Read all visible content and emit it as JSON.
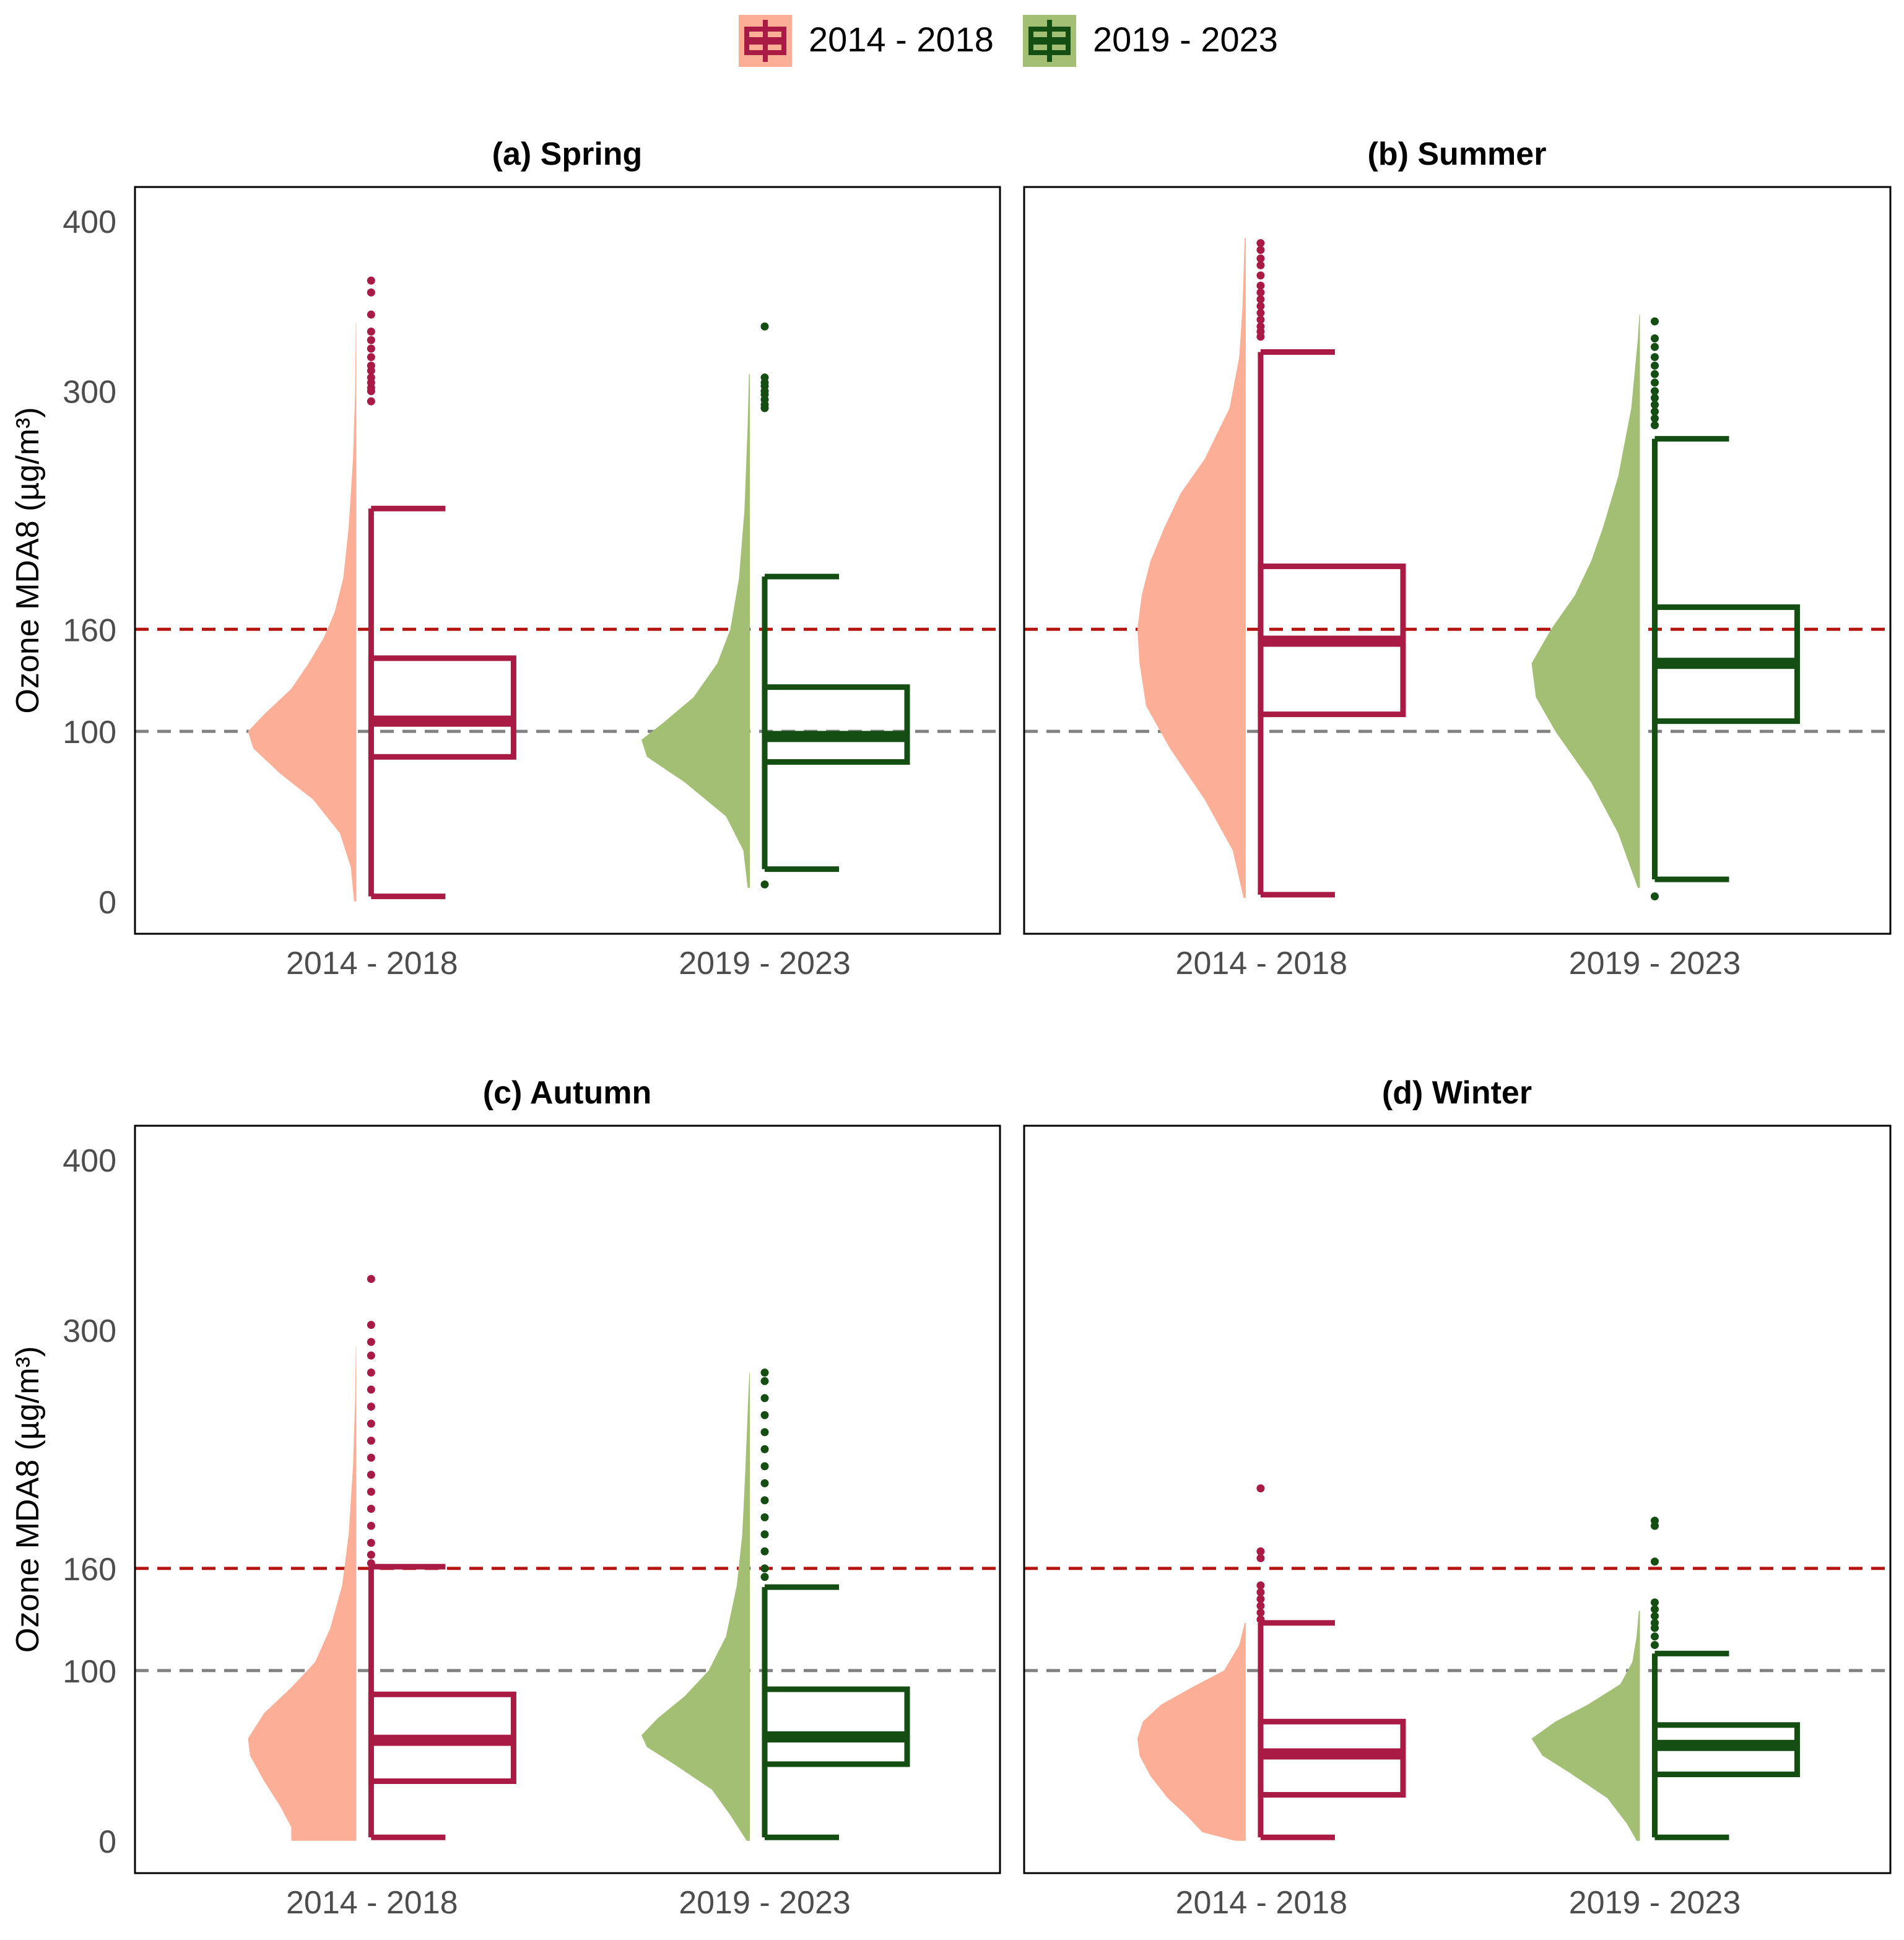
{
  "legend": {
    "items": [
      {
        "label": "2014 - 2018",
        "fill": "#fcae96",
        "stroke": "#a91a45"
      },
      {
        "label": "2019 - 2023",
        "fill": "#a3bf73",
        "stroke": "#154e13"
      }
    ]
  },
  "colors": {
    "period1_fill": "#fcae96",
    "period1_line": "#a91a45",
    "period2_fill": "#a3bf73",
    "period2_line": "#154e13",
    "limit_160": "#b5140f",
    "limit_100": "#808080"
  },
  "chart_data": [
    {
      "type": "raincloud",
      "title": "(a) Spring",
      "ylabel": "Ozone MDA8 (µg/m³)",
      "xlabel": "",
      "ylim": [
        -19,
        420
      ],
      "yticks": [
        0,
        100,
        160,
        300,
        400
      ],
      "categories": [
        "2014 - 2018",
        "2019 - 2023"
      ],
      "reference_lines": [
        {
          "value": 160,
          "style": "dashed",
          "color": "#b5140f"
        },
        {
          "value": 100,
          "style": "dashed",
          "color": "#808080"
        }
      ],
      "series": [
        {
          "name": "2014 - 2018",
          "whisker_low": 3,
          "q1": 85,
          "median": 106,
          "q3": 143,
          "whisker_high": 231,
          "outliers": [
            294,
            300,
            302,
            305,
            308,
            312,
            315,
            320,
            325,
            330,
            335,
            345,
            358,
            365
          ],
          "density": [
            [
              0,
              0.02
            ],
            [
              20,
              0.05
            ],
            [
              40,
              0.15
            ],
            [
              60,
              0.4
            ],
            [
              75,
              0.7
            ],
            [
              90,
              0.95
            ],
            [
              100,
              1
            ],
            [
              110,
              0.85
            ],
            [
              125,
              0.6
            ],
            [
              140,
              0.44
            ],
            [
              155,
              0.3
            ],
            [
              170,
              0.2
            ],
            [
              190,
              0.12
            ],
            [
              220,
              0.07
            ],
            [
              260,
              0.03
            ],
            [
              300,
              0.01
            ],
            [
              340,
              0.004
            ]
          ]
        },
        {
          "name": "2019 - 2023",
          "whisker_low": 19,
          "q1": 82,
          "median": 97,
          "q3": 126,
          "whisker_high": 191,
          "outliers": [
            10,
            290,
            292,
            295,
            298,
            300,
            303,
            305,
            308,
            338
          ],
          "density": [
            [
              8,
              0.02
            ],
            [
              30,
              0.06
            ],
            [
              50,
              0.22
            ],
            [
              70,
              0.6
            ],
            [
              85,
              0.95
            ],
            [
              95,
              1
            ],
            [
              105,
              0.8
            ],
            [
              120,
              0.52
            ],
            [
              140,
              0.3
            ],
            [
              160,
              0.18
            ],
            [
              190,
              0.1
            ],
            [
              230,
              0.05
            ],
            [
              280,
              0.02
            ],
            [
              310,
              0.008
            ]
          ]
        }
      ]
    },
    {
      "type": "raincloud",
      "title": "(b) Summer",
      "ylabel": "",
      "xlabel": "",
      "ylim": [
        -19,
        420
      ],
      "yticks": [
        0,
        100,
        160,
        300,
        400
      ],
      "categories": [
        "2014 - 2018",
        "2019 - 2023"
      ],
      "reference_lines": [
        {
          "value": 160,
          "style": "dashed",
          "color": "#b5140f"
        },
        {
          "value": 100,
          "style": "dashed",
          "color": "#808080"
        }
      ],
      "series": [
        {
          "name": "2014 - 2018",
          "whisker_low": 4,
          "q1": 110,
          "median": 153,
          "q3": 197,
          "whisker_high": 323,
          "outliers": [
            332,
            335,
            338,
            342,
            346,
            350,
            354,
            358,
            362,
            368,
            374,
            378,
            383,
            387
          ],
          "density": [
            [
              2,
              0.02
            ],
            [
              30,
              0.12
            ],
            [
              60,
              0.38
            ],
            [
              90,
              0.7
            ],
            [
              115,
              0.92
            ],
            [
              140,
              0.98
            ],
            [
              160,
              1
            ],
            [
              180,
              0.96
            ],
            [
              200,
              0.88
            ],
            [
              220,
              0.75
            ],
            [
              240,
              0.6
            ],
            [
              260,
              0.38
            ],
            [
              290,
              0.15
            ],
            [
              320,
              0.06
            ],
            [
              350,
              0.03
            ],
            [
              390,
              0.01
            ]
          ]
        },
        {
          "name": "2019 - 2023",
          "whisker_low": 13,
          "q1": 106,
          "median": 140,
          "q3": 173,
          "whisker_high": 272,
          "outliers": [
            3,
            280,
            284,
            288,
            292,
            296,
            300,
            305,
            310,
            315,
            320,
            326,
            331,
            341
          ],
          "density": [
            [
              8,
              0.02
            ],
            [
              40,
              0.2
            ],
            [
              70,
              0.45
            ],
            [
              100,
              0.78
            ],
            [
              120,
              0.96
            ],
            [
              140,
              1
            ],
            [
              160,
              0.82
            ],
            [
              180,
              0.6
            ],
            [
              200,
              0.45
            ],
            [
              220,
              0.34
            ],
            [
              250,
              0.2
            ],
            [
              290,
              0.08
            ],
            [
              330,
              0.02
            ],
            [
              345,
              0.005
            ]
          ]
        }
      ]
    },
    {
      "type": "raincloud",
      "title": "(c) Autumn",
      "ylabel": "Ozone MDA8 (µg/m³)",
      "xlabel": "",
      "ylim": [
        -19,
        420
      ],
      "yticks": [
        0,
        100,
        160,
        300,
        400
      ],
      "categories": [
        "2014 - 2018",
        "2019 - 2023"
      ],
      "reference_lines": [
        {
          "value": 160,
          "style": "dashed",
          "color": "#b5140f"
        },
        {
          "value": 100,
          "style": "dashed",
          "color": "#808080"
        }
      ],
      "series": [
        {
          "name": "2014 - 2018",
          "whisker_low": 2,
          "q1": 35,
          "median": 59,
          "q3": 86,
          "whisker_high": 161,
          "outliers": [
            163,
            168,
            175,
            185,
            195,
            205,
            215,
            225,
            235,
            245,
            255,
            265,
            275,
            285,
            293,
            303,
            330
          ],
          "density": [
            [
              0,
              0.6
            ],
            [
              8,
              0.6
            ],
            [
              20,
              0.7
            ],
            [
              35,
              0.85
            ],
            [
              50,
              0.98
            ],
            [
              60,
              1
            ],
            [
              75,
              0.85
            ],
            [
              90,
              0.6
            ],
            [
              105,
              0.38
            ],
            [
              125,
              0.24
            ],
            [
              150,
              0.13
            ],
            [
              180,
              0.07
            ],
            [
              220,
              0.03
            ],
            [
              260,
              0.01
            ],
            [
              290,
              0.004
            ]
          ]
        },
        {
          "name": "2019 - 2023",
          "whisker_low": 2,
          "q1": 45,
          "median": 61,
          "q3": 89,
          "whisker_high": 149,
          "outliers": [
            155,
            160,
            170,
            180,
            190,
            200,
            210,
            220,
            230,
            240,
            250,
            260,
            270,
            275
          ],
          "density": [
            [
              0,
              0.03
            ],
            [
              15,
              0.18
            ],
            [
              30,
              0.35
            ],
            [
              45,
              0.7
            ],
            [
              55,
              0.95
            ],
            [
              62,
              1
            ],
            [
              72,
              0.85
            ],
            [
              85,
              0.6
            ],
            [
              100,
              0.38
            ],
            [
              120,
              0.22
            ],
            [
              150,
              0.12
            ],
            [
              180,
              0.07
            ],
            [
              220,
              0.04
            ],
            [
              260,
              0.015
            ],
            [
              275,
              0.004
            ]
          ]
        }
      ]
    },
    {
      "type": "raincloud",
      "title": "(d) Winter",
      "ylabel": "",
      "xlabel": "",
      "ylim": [
        -19,
        420
      ],
      "yticks": [
        0,
        100,
        160,
        300,
        400
      ],
      "categories": [
        "2014 - 2018",
        "2019 - 2023"
      ],
      "reference_lines": [
        {
          "value": 160,
          "style": "dashed",
          "color": "#b5140f"
        },
        {
          "value": 100,
          "style": "dashed",
          "color": "#808080"
        }
      ],
      "series": [
        {
          "name": "2014 - 2018",
          "whisker_low": 2,
          "q1": 27,
          "median": 51,
          "q3": 70,
          "whisker_high": 128,
          "outliers": [
            130,
            134,
            138,
            142,
            146,
            150,
            166,
            170,
            207
          ],
          "density": [
            [
              0,
              0.1
            ],
            [
              5,
              0.4
            ],
            [
              15,
              0.55
            ],
            [
              25,
              0.72
            ],
            [
              38,
              0.88
            ],
            [
              50,
              0.98
            ],
            [
              60,
              1
            ],
            [
              70,
              0.95
            ],
            [
              80,
              0.78
            ],
            [
              90,
              0.5
            ],
            [
              100,
              0.2
            ],
            [
              115,
              0.06
            ],
            [
              128,
              0.01
            ]
          ]
        },
        {
          "name": "2019 - 2023",
          "whisker_low": 2,
          "q1": 39,
          "median": 56,
          "q3": 68,
          "whisker_high": 110,
          "outliers": [
            115,
            120,
            125,
            128,
            132,
            136,
            140,
            164,
            185,
            188
          ],
          "density": [
            [
              0,
              0.03
            ],
            [
              10,
              0.12
            ],
            [
              25,
              0.3
            ],
            [
              40,
              0.65
            ],
            [
              50,
              0.9
            ],
            [
              60,
              1
            ],
            [
              70,
              0.78
            ],
            [
              80,
              0.48
            ],
            [
              92,
              0.18
            ],
            [
              105,
              0.07
            ],
            [
              120,
              0.03
            ],
            [
              135,
              0.01
            ]
          ]
        }
      ]
    }
  ]
}
